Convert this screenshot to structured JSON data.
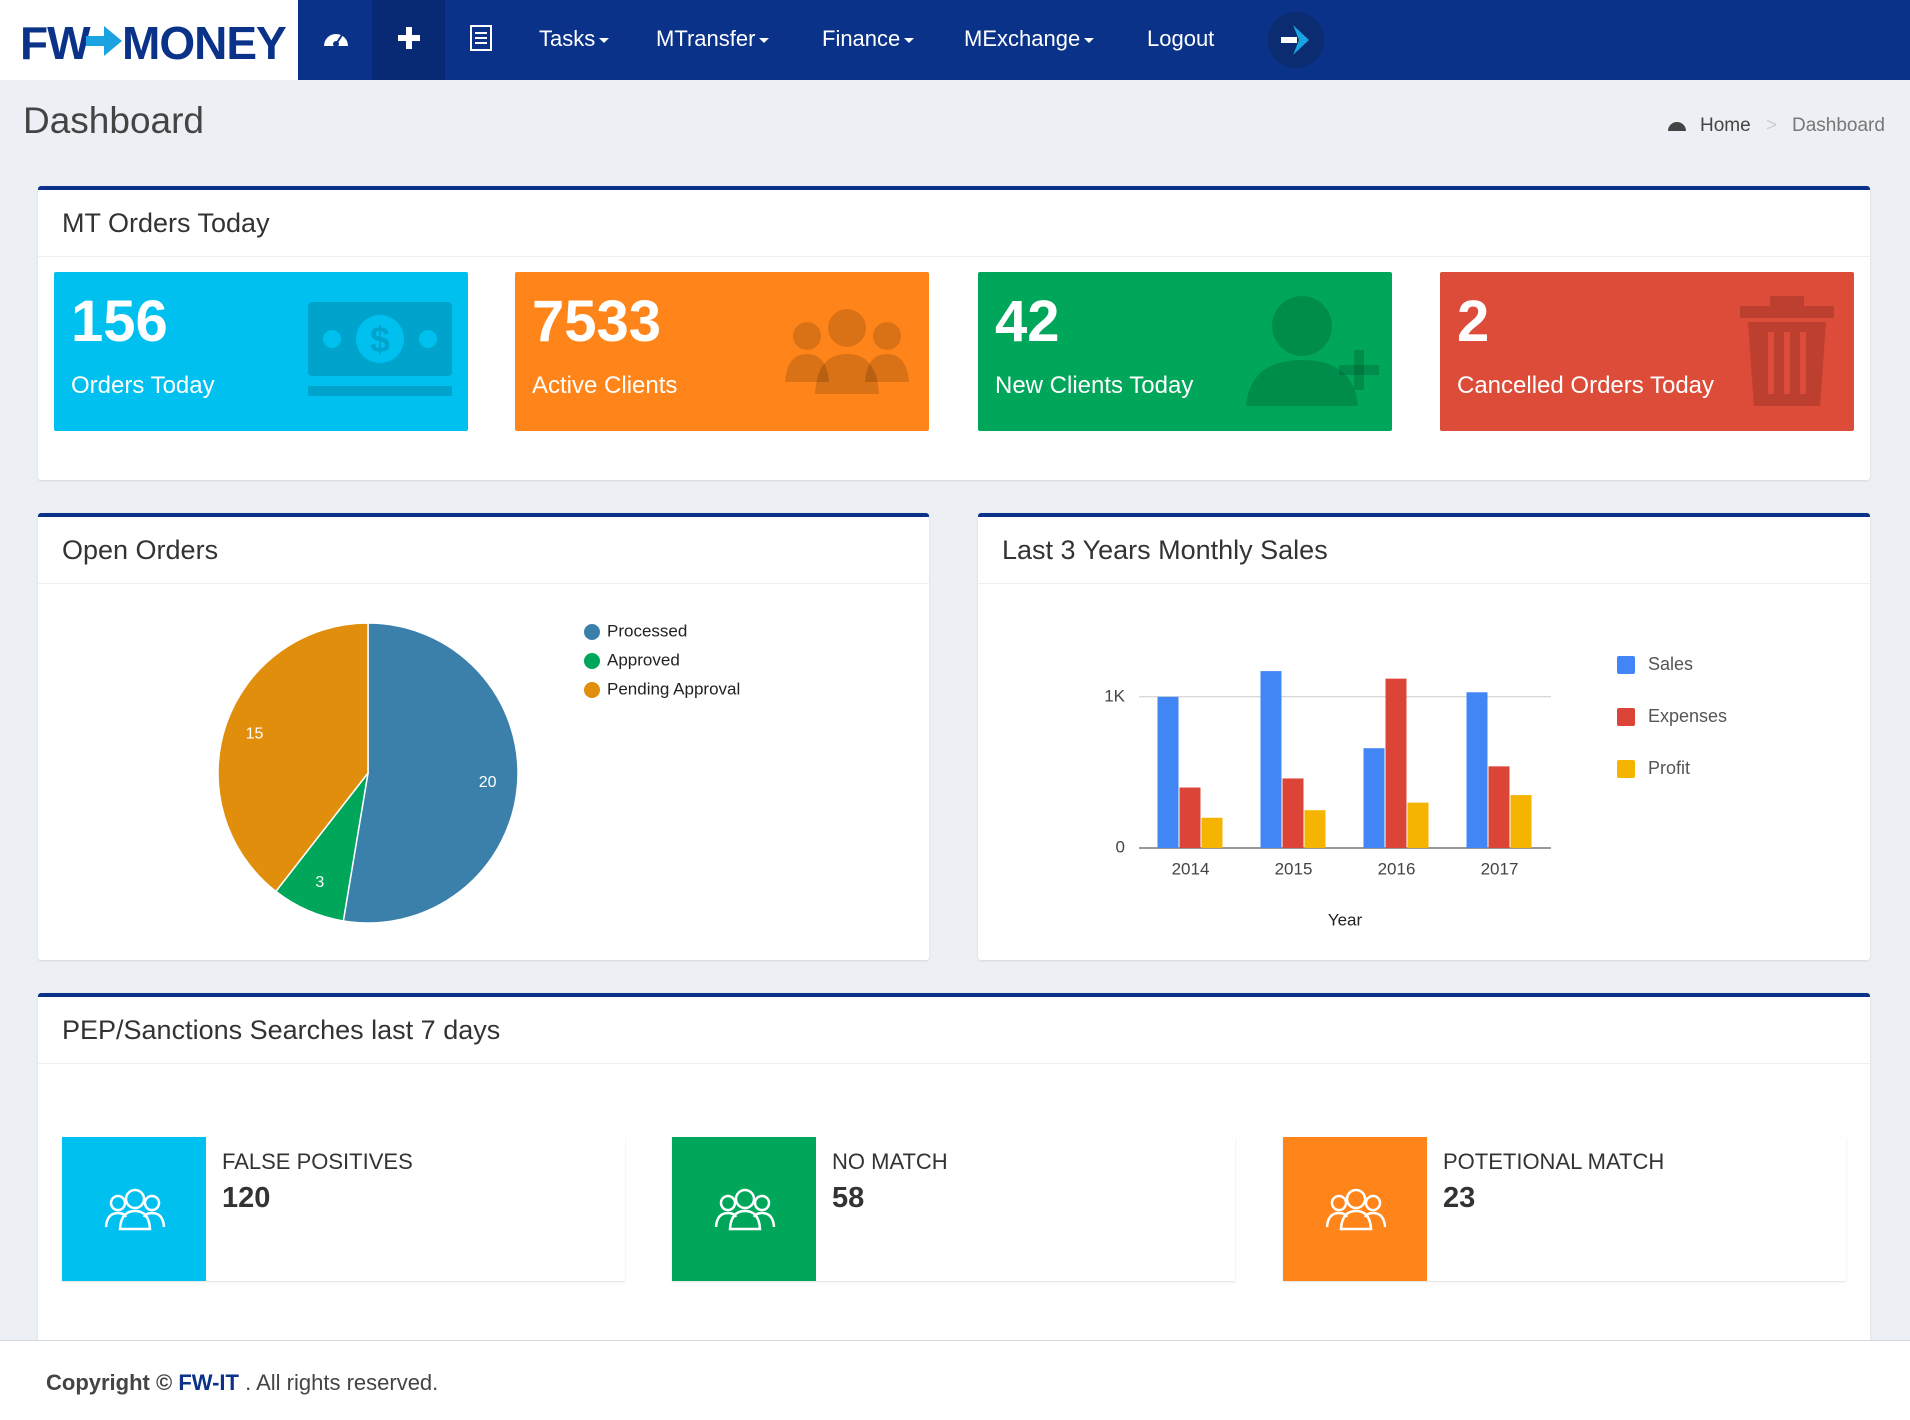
{
  "nav": {
    "logo_left": "FW",
    "logo_right": "MONEY",
    "items": [
      "Tasks",
      "MTransfer",
      "Finance",
      "MExchange",
      "Logout"
    ]
  },
  "header": {
    "title": "Dashboard",
    "breadcrumb": [
      "Home",
      "Dashboard"
    ]
  },
  "mt_orders": {
    "title": "MT Orders Today",
    "boxes": [
      {
        "value": 156,
        "label": "Orders Today"
      },
      {
        "value": 7533,
        "label": "Active Clients"
      },
      {
        "value": 42,
        "label": "New Clients Today"
      },
      {
        "value": 2,
        "label": "Cancelled Orders Today"
      }
    ]
  },
  "chart_data": [
    {
      "type": "pie",
      "title": "Open Orders",
      "categories": [
        "Processed",
        "Approved",
        "Pending Approval"
      ],
      "values": [
        20,
        3,
        15
      ],
      "colors": [
        "#3a80ab",
        "#00a65a",
        "#e08e0b"
      ],
      "legend": "top-right"
    },
    {
      "type": "bar",
      "title": "Last 3 Years Monthly Sales",
      "x_label": "Year",
      "categories": [
        "2014",
        "2015",
        "2016",
        "2017"
      ],
      "series": [
        {
          "name": "Sales",
          "color": "#4285f4",
          "values": [
            1000,
            1170,
            660,
            1030
          ]
        },
        {
          "name": "Expenses",
          "color": "#db4437",
          "values": [
            400,
            460,
            1120,
            540
          ]
        },
        {
          "name": "Profit",
          "color": "#f4b400",
          "values": [
            200,
            250,
            300,
            350
          ]
        }
      ],
      "ylim": [
        0,
        1250
      ],
      "yticks": [
        0,
        {
          "value": 1000,
          "label": "1K"
        }
      ],
      "grid": true,
      "legend": "right"
    }
  ],
  "searches": {
    "title": "PEP/Sanctions Searches last 7 days",
    "boxes": [
      {
        "label": "FALSE POSITIVES",
        "value": 120
      },
      {
        "label": "NO MATCH",
        "value": 58
      },
      {
        "label": "POTETIONAL MATCH",
        "value": 23
      }
    ]
  },
  "footer": {
    "prefix": "Copyright ©",
    "company": "FW-IT",
    "suffix": ". All rights reserved."
  }
}
